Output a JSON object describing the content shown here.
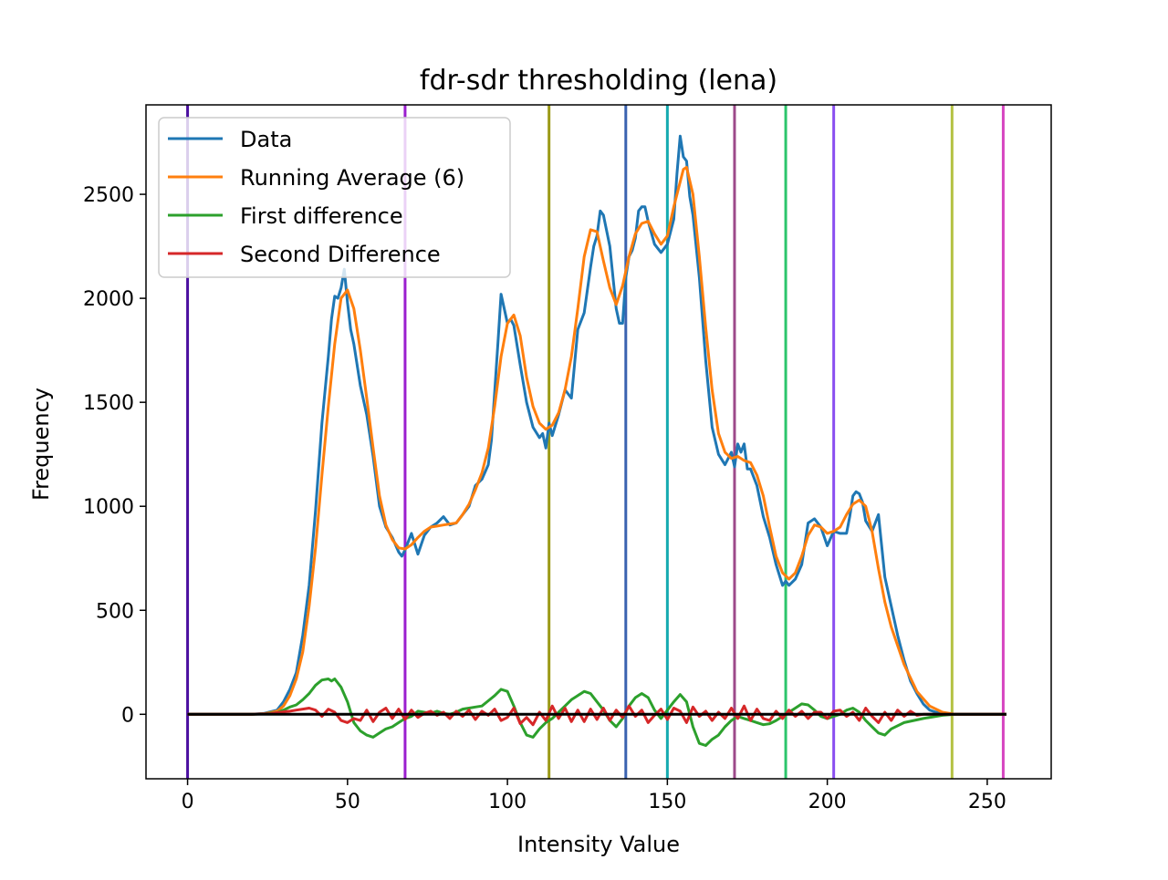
{
  "chart_data": {
    "type": "line",
    "title": "fdr-sdr thresholding (lena)",
    "xlabel": "Intensity Value",
    "ylabel": "Frequency",
    "xlim": [
      -13,
      270
    ],
    "ylim": [
      -310,
      2930
    ],
    "xticks": [
      0,
      50,
      100,
      150,
      200,
      250
    ],
    "yticks": [
      0,
      500,
      1000,
      1500,
      2000,
      2500
    ],
    "grid": false,
    "legend_position": "upper-left",
    "colors": {
      "Data": "#1f77b4",
      "Running Average (6)": "#ff7f0e",
      "First difference": "#2ca02c",
      "Second Difference": "#d62728",
      "zero_line": "#000000"
    },
    "series": [
      {
        "name": "Data",
        "x": [
          0,
          10,
          20,
          24,
          28,
          30,
          32,
          34,
          36,
          38,
          40,
          42,
          44,
          45,
          46,
          47,
          48,
          49,
          50,
          51,
          52,
          54,
          56,
          58,
          60,
          62,
          64,
          66,
          67,
          68,
          70,
          72,
          74,
          76,
          78,
          80,
          82,
          84,
          86,
          88,
          90,
          92,
          94,
          95,
          96,
          97,
          98,
          99,
          100,
          101,
          102,
          104,
          106,
          108,
          110,
          111,
          112,
          113,
          114,
          116,
          118,
          120,
          122,
          124,
          126,
          127,
          128,
          129,
          130,
          132,
          134,
          135,
          136,
          137,
          138,
          139,
          140,
          141,
          142,
          143,
          144,
          146,
          148,
          150,
          152,
          153,
          154,
          155,
          156,
          157,
          158,
          160,
          162,
          164,
          166,
          168,
          170,
          171,
          172,
          173,
          174,
          175,
          176,
          178,
          180,
          182,
          184,
          186,
          187,
          188,
          190,
          192,
          194,
          196,
          198,
          200,
          202,
          204,
          206,
          207,
          208,
          209,
          210,
          211,
          212,
          214,
          216,
          218,
          220,
          222,
          224,
          226,
          228,
          230,
          232,
          234,
          236,
          240,
          256
        ],
        "y": [
          0,
          0,
          0,
          5,
          20,
          60,
          120,
          200,
          380,
          620,
          980,
          1400,
          1720,
          1900,
          2010,
          2000,
          2050,
          2140,
          1980,
          1850,
          1780,
          1580,
          1440,
          1240,
          1000,
          900,
          850,
          780,
          760,
          790,
          870,
          770,
          860,
          900,
          920,
          950,
          910,
          920,
          960,
          1000,
          1100,
          1130,
          1200,
          1320,
          1550,
          1780,
          2020,
          1950,
          1880,
          1900,
          1870,
          1680,
          1500,
          1380,
          1330,
          1350,
          1280,
          1400,
          1340,
          1440,
          1560,
          1520,
          1850,
          1930,
          2150,
          2250,
          2300,
          2420,
          2400,
          2250,
          1950,
          1880,
          1880,
          2100,
          2200,
          2230,
          2290,
          2420,
          2440,
          2440,
          2370,
          2260,
          2220,
          2260,
          2380,
          2600,
          2780,
          2680,
          2660,
          2490,
          2400,
          2100,
          1700,
          1380,
          1250,
          1200,
          1260,
          1190,
          1300,
          1260,
          1300,
          1180,
          1180,
          1100,
          950,
          850,
          720,
          620,
          640,
          620,
          650,
          720,
          920,
          940,
          900,
          810,
          880,
          870,
          870,
          950,
          1050,
          1070,
          1060,
          1020,
          930,
          880,
          960,
          660,
          520,
          380,
          260,
          160,
          100,
          50,
          20,
          10,
          5,
          0,
          0
        ],
        "color": "#1f77b4"
      },
      {
        "name": "Running Average (6)",
        "x": [
          0,
          10,
          20,
          24,
          28,
          30,
          32,
          34,
          36,
          38,
          40,
          42,
          44,
          46,
          48,
          50,
          52,
          54,
          56,
          58,
          60,
          62,
          64,
          66,
          68,
          70,
          72,
          74,
          76,
          78,
          80,
          84,
          86,
          88,
          90,
          92,
          94,
          96,
          98,
          100,
          102,
          104,
          106,
          108,
          110,
          112,
          114,
          116,
          118,
          120,
          122,
          124,
          126,
          128,
          130,
          132,
          134,
          136,
          138,
          140,
          142,
          144,
          146,
          148,
          150,
          152,
          154,
          155,
          156,
          158,
          160,
          162,
          164,
          166,
          168,
          170,
          172,
          174,
          176,
          178,
          180,
          182,
          184,
          186,
          188,
          190,
          192,
          194,
          196,
          198,
          200,
          202,
          204,
          206,
          208,
          210,
          212,
          214,
          216,
          218,
          220,
          224,
          228,
          232,
          236,
          240,
          256
        ],
        "y": [
          0,
          0,
          0,
          3,
          15,
          40,
          90,
          170,
          300,
          520,
          800,
          1150,
          1480,
          1780,
          2000,
          2040,
          1950,
          1750,
          1520,
          1280,
          1050,
          910,
          840,
          800,
          795,
          815,
          850,
          880,
          900,
          905,
          910,
          920,
          960,
          1010,
          1080,
          1160,
          1280,
          1480,
          1720,
          1880,
          1920,
          1820,
          1620,
          1480,
          1400,
          1370,
          1390,
          1450,
          1560,
          1720,
          1950,
          2200,
          2330,
          2320,
          2180,
          2050,
          1970,
          2060,
          2200,
          2310,
          2360,
          2370,
          2310,
          2260,
          2300,
          2440,
          2560,
          2620,
          2630,
          2500,
          2200,
          1860,
          1560,
          1350,
          1260,
          1230,
          1240,
          1220,
          1210,
          1150,
          1050,
          900,
          760,
          680,
          650,
          680,
          760,
          860,
          910,
          900,
          870,
          880,
          900,
          960,
          1010,
          1030,
          1000,
          880,
          700,
          540,
          420,
          240,
          110,
          40,
          10,
          0,
          0
        ],
        "color": "#ff7f0e"
      },
      {
        "name": "First difference",
        "x": [
          0,
          20,
          24,
          28,
          30,
          32,
          34,
          36,
          38,
          40,
          42,
          44,
          45,
          46,
          48,
          50,
          52,
          54,
          56,
          58,
          60,
          62,
          64,
          66,
          68,
          70,
          72,
          74,
          76,
          78,
          80,
          82,
          84,
          86,
          88,
          90,
          92,
          94,
          96,
          98,
          100,
          102,
          104,
          106,
          108,
          110,
          112,
          114,
          116,
          118,
          120,
          122,
          124,
          126,
          128,
          130,
          132,
          134,
          136,
          138,
          140,
          142,
          144,
          146,
          148,
          150,
          152,
          154,
          156,
          158,
          160,
          162,
          164,
          166,
          168,
          170,
          172,
          174,
          176,
          178,
          180,
          182,
          184,
          186,
          188,
          190,
          192,
          194,
          196,
          198,
          200,
          202,
          204,
          206,
          208,
          210,
          212,
          214,
          216,
          218,
          220,
          224,
          230,
          236,
          240,
          256
        ],
        "y": [
          0,
          0,
          2,
          8,
          20,
          35,
          45,
          70,
          100,
          140,
          165,
          170,
          160,
          170,
          130,
          60,
          -40,
          -80,
          -100,
          -110,
          -90,
          -70,
          -60,
          -40,
          -20,
          -10,
          15,
          10,
          5,
          15,
          5,
          0,
          10,
          25,
          30,
          35,
          40,
          65,
          90,
          120,
          110,
          40,
          -40,
          -100,
          -110,
          -70,
          -40,
          -20,
          10,
          40,
          70,
          90,
          110,
          100,
          60,
          20,
          -30,
          -60,
          -20,
          40,
          80,
          100,
          80,
          20,
          -20,
          20,
          60,
          95,
          60,
          -60,
          -140,
          -150,
          -120,
          -100,
          -60,
          -30,
          -10,
          -20,
          -30,
          -40,
          -50,
          -45,
          -30,
          -10,
          10,
          30,
          50,
          45,
          20,
          -10,
          -20,
          -10,
          0,
          20,
          30,
          10,
          -30,
          -60,
          -90,
          -100,
          -70,
          -40,
          -20,
          -5,
          0,
          0
        ],
        "color": "#2ca02c"
      },
      {
        "name": "Second Difference",
        "x": [
          0,
          20,
          26,
          28,
          30,
          32,
          34,
          36,
          38,
          40,
          42,
          44,
          46,
          48,
          50,
          52,
          54,
          56,
          58,
          60,
          62,
          64,
          66,
          68,
          70,
          72,
          74,
          76,
          78,
          80,
          82,
          84,
          86,
          88,
          90,
          92,
          94,
          96,
          98,
          100,
          102,
          104,
          106,
          108,
          110,
          112,
          114,
          116,
          118,
          120,
          122,
          124,
          126,
          128,
          130,
          132,
          134,
          136,
          138,
          140,
          142,
          144,
          146,
          148,
          150,
          152,
          154,
          156,
          158,
          160,
          162,
          164,
          166,
          168,
          170,
          172,
          174,
          176,
          178,
          180,
          182,
          184,
          186,
          188,
          190,
          192,
          194,
          196,
          198,
          200,
          202,
          204,
          206,
          208,
          210,
          212,
          214,
          216,
          218,
          220,
          222,
          224,
          226,
          228,
          230,
          236,
          240,
          256
        ],
        "y": [
          0,
          0,
          3,
          8,
          12,
          15,
          20,
          25,
          30,
          20,
          -10,
          25,
          10,
          -30,
          -40,
          -20,
          -30,
          20,
          -35,
          10,
          30,
          -20,
          25,
          -25,
          20,
          -15,
          5,
          15,
          -5,
          10,
          -20,
          15,
          -10,
          20,
          -25,
          15,
          -5,
          25,
          -30,
          -15,
          30,
          -45,
          -15,
          -50,
          10,
          -30,
          40,
          -20,
          30,
          -35,
          20,
          -35,
          25,
          -25,
          30,
          -30,
          20,
          -15,
          40,
          -10,
          20,
          -40,
          -5,
          25,
          -25,
          30,
          15,
          -40,
          35,
          -10,
          15,
          -30,
          10,
          -20,
          30,
          -20,
          40,
          -30,
          25,
          -20,
          -30,
          15,
          -20,
          20,
          -10,
          15,
          -20,
          10,
          10,
          -20,
          15,
          20,
          -10,
          10,
          -30,
          30,
          -10,
          -40,
          10,
          -30,
          20,
          -10,
          15,
          -5,
          0,
          0,
          0,
          0
        ],
        "color": "#d62728"
      }
    ],
    "zero_line": {
      "y": 0,
      "x": [
        0,
        256
      ],
      "color": "#000000"
    },
    "vertical_lines": [
      {
        "x": 0,
        "color": "#4b0fa0"
      },
      {
        "x": 68,
        "color": "#9b1fcf"
      },
      {
        "x": 113,
        "color": "#9b9a17"
      },
      {
        "x": 137,
        "color": "#3a62b0"
      },
      {
        "x": 150,
        "color": "#15aab0"
      },
      {
        "x": 171,
        "color": "#9c4a8a"
      },
      {
        "x": 187,
        "color": "#2cc56b"
      },
      {
        "x": 202,
        "color": "#8a4ff0"
      },
      {
        "x": 239,
        "color": "#b4c243"
      },
      {
        "x": 255,
        "color": "#d645c0"
      }
    ]
  }
}
